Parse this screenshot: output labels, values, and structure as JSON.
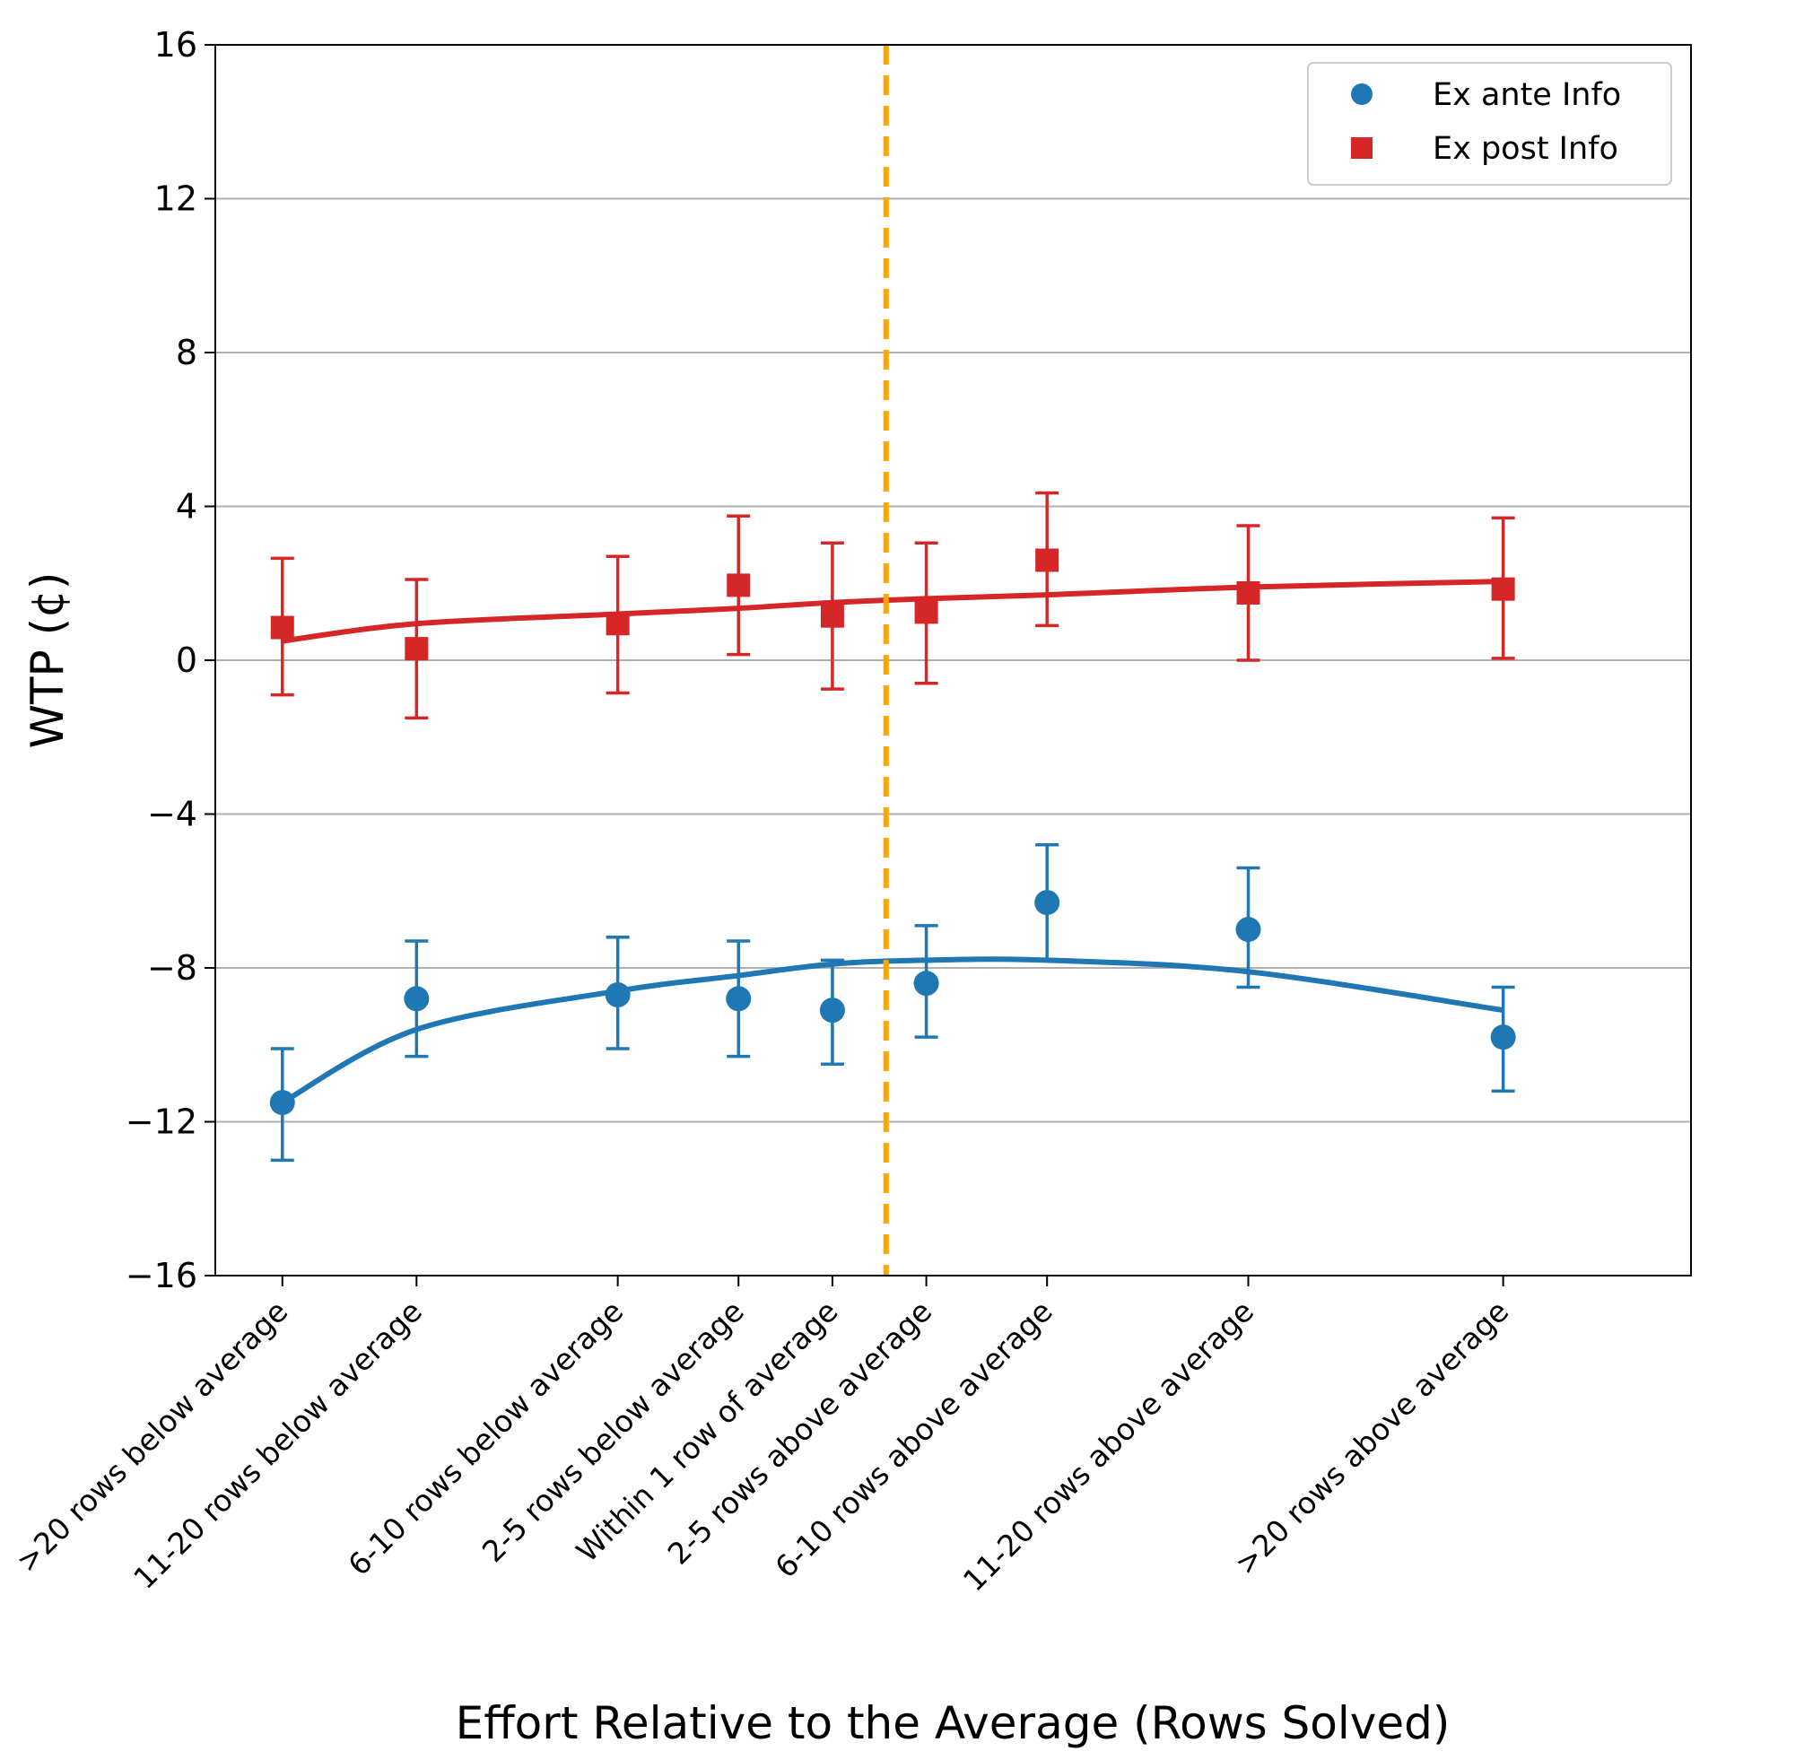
{
  "chart_data": {
    "type": "scatter",
    "title": "",
    "xlabel": "Effort Relative to the Average (Rows Solved)",
    "ylabel": "WTP (¢)",
    "ylim": [
      -16,
      16
    ],
    "yticks": [
      -16,
      -12,
      -8,
      -4,
      0,
      4,
      8,
      12,
      16
    ],
    "ytick_labels": [
      "−16",
      "−12",
      "−8",
      "−4",
      "0",
      "4",
      "8",
      "12",
      "16"
    ],
    "grid": "horizontal",
    "legend_position": "top-right",
    "reference_line": {
      "x": 2.0,
      "color": "#ffa500",
      "style": "dashed"
    },
    "x_categories": [
      ">20 rows below average",
      "11-20 rows below average",
      "6-10 rows below average",
      "2-5 rows below average",
      "Within 1 row of average",
      "2-5 rows above average",
      "6-10 rows above average",
      "11-20 rows above average",
      ">20 rows above average"
    ],
    "x_positions": [
      -20.5,
      -15.5,
      -8,
      -3.5,
      0,
      3.5,
      8,
      15.5,
      25
    ],
    "xlim": [
      -23,
      32
    ],
    "series": [
      {
        "name": "Ex ante Info",
        "color": "#1f77b4",
        "marker": "circle",
        "values": [
          -11.5,
          -8.8,
          -8.7,
          -8.8,
          -9.1,
          -8.4,
          -6.3,
          -7.0,
          -9.8
        ],
        "err_low": [
          -13.0,
          -10.3,
          -10.1,
          -10.3,
          -10.5,
          -9.8,
          -7.8,
          -8.5,
          -11.2
        ],
        "err_high": [
          -10.1,
          -7.3,
          -7.2,
          -7.3,
          -7.8,
          -6.9,
          -4.8,
          -5.4,
          -8.5
        ],
        "fit": [
          -11.5,
          -9.6,
          -8.6,
          -8.2,
          -7.9,
          -7.8,
          -7.8,
          -8.1,
          -9.1
        ]
      },
      {
        "name": "Ex post Info",
        "color": "#d62728",
        "marker": "square",
        "values": [
          0.85,
          0.3,
          0.95,
          1.95,
          1.15,
          1.25,
          2.6,
          1.75,
          1.85
        ],
        "err_low": [
          -0.9,
          -1.5,
          -0.85,
          0.15,
          -0.75,
          -0.6,
          0.9,
          0.0,
          0.05
        ],
        "err_high": [
          2.65,
          2.1,
          2.7,
          3.75,
          3.05,
          3.05,
          4.35,
          3.5,
          3.7
        ],
        "fit": [
          0.5,
          0.95,
          1.2,
          1.35,
          1.5,
          1.6,
          1.7,
          1.9,
          2.05
        ]
      }
    ]
  }
}
